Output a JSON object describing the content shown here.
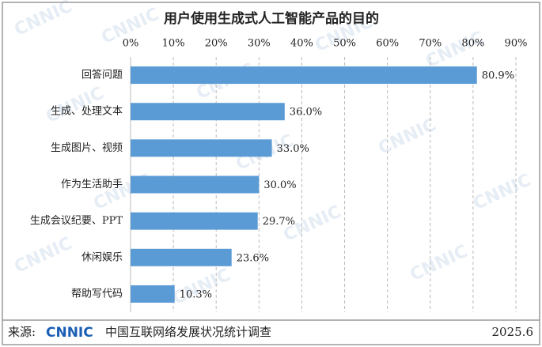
{
  "chart_data": {
    "type": "bar",
    "orientation": "horizontal",
    "title": "用户使用生成式人工智能产品的目的",
    "categories": [
      "回答问题",
      "生成、处理文本",
      "生成图片、视频",
      "作为生活助手",
      "生成会议纪要、PPT",
      "休闲娱乐",
      "帮助写代码"
    ],
    "values": [
      80.9,
      36.0,
      33.0,
      30.0,
      29.7,
      23.6,
      10.3
    ],
    "value_labels": [
      "80.9%",
      "36.0%",
      "33.0%",
      "30.0%",
      "29.7%",
      "23.6%",
      "10.3%"
    ],
    "color": "#5b9bd5",
    "xlim": [
      0,
      90
    ],
    "xticks": [
      {
        "value": 0,
        "label": "0%"
      },
      {
        "value": 10,
        "label": "10%"
      },
      {
        "value": 20,
        "label": "20%"
      },
      {
        "value": 30,
        "label": "30%"
      },
      {
        "value": 40,
        "label": "40%"
      },
      {
        "value": 50,
        "label": "50%"
      },
      {
        "value": 60,
        "label": "60%"
      },
      {
        "value": 70,
        "label": "70%"
      },
      {
        "value": 80,
        "label": "80%"
      },
      {
        "value": 90,
        "label": "90%"
      }
    ],
    "grid": true
  },
  "footer": {
    "source_label": "来源:",
    "logo": "CNNIC",
    "source": "中国互联网络发展状况统计调查",
    "date": "2025.6"
  }
}
